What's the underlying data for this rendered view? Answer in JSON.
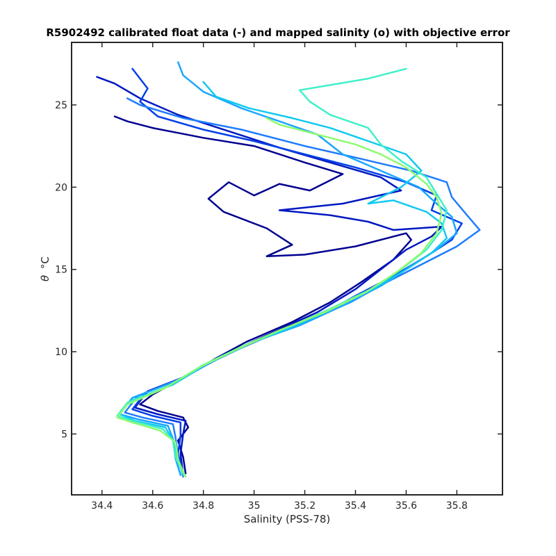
{
  "chart_data": {
    "type": "line",
    "title": "R5902492 calibrated float data (-) and mapped salinity (o) with objective error",
    "xlabel": "Salinity (PSS-78)",
    "ylabel_symbol": "θ",
    "ylabel_unit": "°C",
    "xlim": [
      34.28,
      35.98
    ],
    "ylim": [
      1.3,
      28.8
    ],
    "xticks": [
      34.4,
      34.6,
      34.8,
      35,
      35.2,
      35.4,
      35.6,
      35.8
    ],
    "xtick_labels": [
      "34.4",
      "34.6",
      "34.8",
      "35",
      "35.2",
      "35.4",
      "35.6",
      "35.8"
    ],
    "yticks": [
      5,
      10,
      15,
      20,
      25
    ],
    "ytick_labels": [
      "5",
      "10",
      "15",
      "20",
      "25"
    ],
    "grid": false,
    "colormap": "jet (lower portion: dark blue → cyan → light green), ordered by profile number",
    "colors": [
      "#00008f",
      "#0030d8",
      "#1f7cff",
      "#11c9f0",
      "#3ff0c8",
      "#8cfb6f"
    ],
    "series": [
      {
        "color": "#00008f",
        "points": [
          [
            34.73,
            2.6
          ],
          [
            34.72,
            3.6
          ],
          [
            34.7,
            4.6
          ],
          [
            34.74,
            5.4
          ],
          [
            34.72,
            6.0
          ],
          [
            34.62,
            6.4
          ],
          [
            34.55,
            6.8
          ],
          [
            34.6,
            7.4
          ],
          [
            34.72,
            8.4
          ],
          [
            34.85,
            9.6
          ],
          [
            34.97,
            10.6
          ],
          [
            35.15,
            11.8
          ],
          [
            35.3,
            13.0
          ],
          [
            35.42,
            14.2
          ],
          [
            35.55,
            15.6
          ],
          [
            35.62,
            16.8
          ],
          [
            35.6,
            17.2
          ],
          [
            35.4,
            16.4
          ],
          [
            35.2,
            15.9
          ],
          [
            35.05,
            15.8
          ],
          [
            35.15,
            16.5
          ],
          [
            35.05,
            17.5
          ],
          [
            34.88,
            18.5
          ],
          [
            34.82,
            19.3
          ],
          [
            34.9,
            20.3
          ],
          [
            35.0,
            19.5
          ],
          [
            35.1,
            20.2
          ],
          [
            35.22,
            19.8
          ],
          [
            35.35,
            20.8
          ],
          [
            35.2,
            21.5
          ],
          [
            35.0,
            22.5
          ],
          [
            34.8,
            23.0
          ],
          [
            34.6,
            23.6
          ],
          [
            34.5,
            24.0
          ],
          [
            34.45,
            24.3
          ]
        ]
      },
      {
        "color": "#0018c0",
        "points": [
          [
            34.72,
            2.5
          ],
          [
            34.71,
            3.8
          ],
          [
            34.72,
            5.0
          ],
          [
            34.73,
            5.8
          ],
          [
            34.62,
            6.2
          ],
          [
            34.53,
            6.6
          ],
          [
            34.58,
            7.6
          ],
          [
            34.73,
            8.5
          ],
          [
            34.88,
            9.8
          ],
          [
            35.05,
            11.0
          ],
          [
            35.25,
            12.4
          ],
          [
            35.4,
            13.8
          ],
          [
            35.5,
            15.0
          ],
          [
            35.6,
            16.2
          ],
          [
            35.7,
            17.0
          ],
          [
            35.74,
            17.6
          ],
          [
            35.55,
            17.4
          ],
          [
            35.45,
            17.9
          ],
          [
            35.3,
            18.3
          ],
          [
            35.1,
            18.6
          ],
          [
            35.35,
            19.0
          ],
          [
            35.58,
            19.8
          ],
          [
            35.5,
            20.6
          ],
          [
            35.3,
            21.5
          ],
          [
            35.1,
            22.4
          ],
          [
            34.9,
            23.4
          ],
          [
            34.7,
            24.4
          ],
          [
            34.55,
            25.4
          ],
          [
            34.45,
            26.3
          ],
          [
            34.38,
            26.7
          ]
        ]
      },
      {
        "color": "#0040e8",
        "points": [
          [
            34.72,
            2.7
          ],
          [
            34.7,
            3.8
          ],
          [
            34.71,
            4.9
          ],
          [
            34.71,
            5.7
          ],
          [
            34.6,
            6.1
          ],
          [
            34.52,
            6.5
          ],
          [
            34.57,
            7.5
          ],
          [
            34.72,
            8.4
          ],
          [
            34.87,
            9.7
          ],
          [
            35.05,
            10.9
          ],
          [
            35.25,
            12.1
          ],
          [
            35.4,
            13.4
          ],
          [
            35.55,
            14.6
          ],
          [
            35.68,
            15.8
          ],
          [
            35.78,
            16.8
          ],
          [
            35.82,
            17.8
          ],
          [
            35.7,
            18.6
          ],
          [
            35.72,
            19.5
          ],
          [
            35.6,
            20.3
          ],
          [
            35.4,
            21.2
          ],
          [
            35.2,
            22.0
          ],
          [
            35.0,
            22.8
          ],
          [
            34.8,
            23.5
          ],
          [
            34.62,
            24.3
          ],
          [
            34.55,
            25.2
          ],
          [
            34.58,
            26.0
          ],
          [
            34.52,
            27.2
          ]
        ]
      },
      {
        "color": "#1f7cff",
        "points": [
          [
            34.72,
            2.4
          ],
          [
            34.7,
            3.6
          ],
          [
            34.69,
            4.8
          ],
          [
            34.68,
            5.6
          ],
          [
            34.56,
            6.0
          ],
          [
            34.49,
            6.3
          ],
          [
            34.54,
            7.3
          ],
          [
            34.7,
            8.3
          ],
          [
            34.85,
            9.5
          ],
          [
            35.0,
            10.6
          ],
          [
            35.2,
            11.8
          ],
          [
            35.38,
            13.0
          ],
          [
            35.52,
            14.2
          ],
          [
            35.66,
            15.3
          ],
          [
            35.8,
            16.4
          ],
          [
            35.89,
            17.4
          ],
          [
            35.84,
            18.3
          ],
          [
            35.78,
            19.4
          ],
          [
            35.76,
            20.3
          ],
          [
            35.62,
            21.0
          ],
          [
            35.4,
            21.8
          ],
          [
            35.2,
            22.5
          ],
          [
            34.95,
            23.5
          ],
          [
            34.72,
            24.2
          ],
          [
            34.55,
            25.0
          ],
          [
            34.5,
            25.4
          ]
        ]
      },
      {
        "color": "#1aa6ff",
        "points": [
          [
            34.71,
            2.5
          ],
          [
            34.69,
            3.5
          ],
          [
            34.68,
            4.7
          ],
          [
            34.66,
            5.5
          ],
          [
            34.54,
            5.9
          ],
          [
            34.47,
            6.2
          ],
          [
            34.52,
            7.2
          ],
          [
            34.69,
            8.2
          ],
          [
            34.83,
            9.4
          ],
          [
            34.98,
            10.5
          ],
          [
            35.18,
            11.6
          ],
          [
            35.35,
            12.8
          ],
          [
            35.5,
            14.0
          ],
          [
            35.62,
            15.2
          ],
          [
            35.72,
            16.2
          ],
          [
            35.8,
            17.2
          ],
          [
            35.78,
            18.2
          ],
          [
            35.72,
            19.0
          ],
          [
            35.65,
            20.0
          ],
          [
            35.5,
            21.0
          ],
          [
            35.35,
            22.0
          ],
          [
            35.25,
            23.2
          ],
          [
            35.1,
            24.0
          ],
          [
            34.95,
            24.8
          ],
          [
            34.8,
            25.8
          ],
          [
            34.72,
            26.8
          ],
          [
            34.7,
            27.6
          ]
        ]
      },
      {
        "color": "#11c9f0",
        "points": [
          [
            34.72,
            2.5
          ],
          [
            34.7,
            3.4
          ],
          [
            34.68,
            4.6
          ],
          [
            34.65,
            5.4
          ],
          [
            34.53,
            5.8
          ],
          [
            34.47,
            6.2
          ],
          [
            34.51,
            7.0
          ],
          [
            34.68,
            8.0
          ],
          [
            34.82,
            9.3
          ],
          [
            34.97,
            10.4
          ],
          [
            35.15,
            11.5
          ],
          [
            35.32,
            12.7
          ],
          [
            35.48,
            13.9
          ],
          [
            35.6,
            15.0
          ],
          [
            35.7,
            16.0
          ],
          [
            35.76,
            16.9
          ],
          [
            35.74,
            17.8
          ],
          [
            35.68,
            18.5
          ],
          [
            35.55,
            19.2
          ],
          [
            35.45,
            19.0
          ],
          [
            35.58,
            20.0
          ],
          [
            35.66,
            21.0
          ],
          [
            35.6,
            22.0
          ],
          [
            35.45,
            22.8
          ],
          [
            35.3,
            23.6
          ],
          [
            35.15,
            24.2
          ],
          [
            34.98,
            24.8
          ],
          [
            34.85,
            25.5
          ],
          [
            34.8,
            26.4
          ]
        ]
      },
      {
        "color": "#3ff0c8",
        "points": [
          [
            34.72,
            2.6
          ],
          [
            34.69,
            3.6
          ],
          [
            34.68,
            4.6
          ],
          [
            34.64,
            5.3
          ],
          [
            34.52,
            5.8
          ],
          [
            34.46,
            6.1
          ],
          [
            34.5,
            6.9
          ],
          [
            34.66,
            7.9
          ],
          [
            34.8,
            9.2
          ],
          [
            34.95,
            10.3
          ],
          [
            35.12,
            11.4
          ],
          [
            35.3,
            12.6
          ],
          [
            35.46,
            13.8
          ],
          [
            35.58,
            15.0
          ],
          [
            35.68,
            16.2
          ],
          [
            35.74,
            17.4
          ],
          [
            35.76,
            18.6
          ],
          [
            35.72,
            19.6
          ],
          [
            35.68,
            20.6
          ],
          [
            35.58,
            21.6
          ],
          [
            35.5,
            22.6
          ],
          [
            35.45,
            23.6
          ],
          [
            35.3,
            24.4
          ],
          [
            35.22,
            25.2
          ],
          [
            35.18,
            25.9
          ],
          [
            35.45,
            26.6
          ],
          [
            35.6,
            27.2
          ]
        ]
      },
      {
        "color": "#8cfb6f",
        "points": [
          [
            34.73,
            2.4
          ],
          [
            34.7,
            3.4
          ],
          [
            34.69,
            4.5
          ],
          [
            34.63,
            5.2
          ],
          [
            34.52,
            5.7
          ],
          [
            34.46,
            6.0
          ],
          [
            34.5,
            6.8
          ],
          [
            34.65,
            7.8
          ],
          [
            34.79,
            9.1
          ],
          [
            34.94,
            10.2
          ],
          [
            35.1,
            11.3
          ],
          [
            35.28,
            12.4
          ],
          [
            35.44,
            13.6
          ],
          [
            35.56,
            14.8
          ],
          [
            35.66,
            16.0
          ],
          [
            35.72,
            17.2
          ],
          [
            35.74,
            18.4
          ],
          [
            35.72,
            19.4
          ],
          [
            35.68,
            20.2
          ],
          [
            35.6,
            21.2
          ],
          [
            35.5,
            22.0
          ],
          [
            35.4,
            22.6
          ],
          [
            35.3,
            23.0
          ],
          [
            35.2,
            23.4
          ],
          [
            35.1,
            23.8
          ],
          [
            35.05,
            24.2
          ]
        ]
      }
    ]
  }
}
